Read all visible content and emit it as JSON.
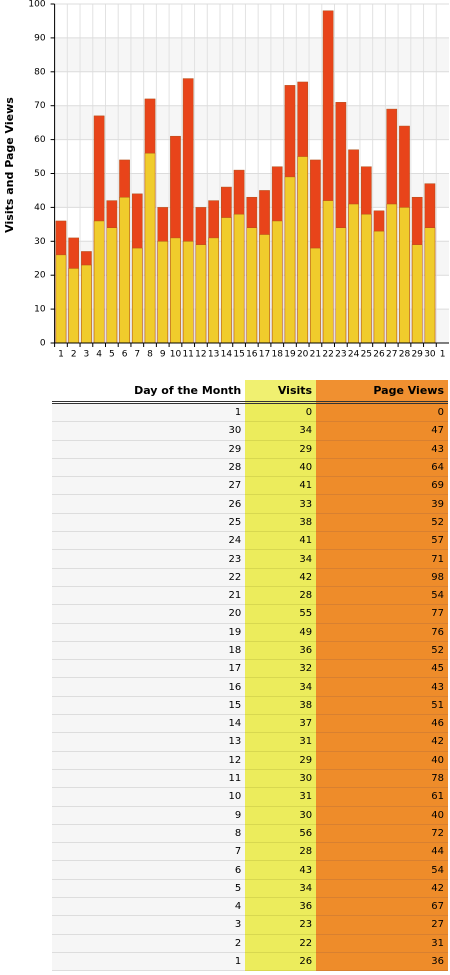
{
  "chart_data": {
    "type": "bar",
    "y_label": "Visits and Page Views",
    "categories": [
      1,
      2,
      3,
      4,
      5,
      6,
      7,
      8,
      9,
      10,
      11,
      12,
      13,
      14,
      15,
      16,
      17,
      18,
      19,
      20,
      21,
      22,
      23,
      24,
      25,
      26,
      27,
      28,
      29,
      30,
      1
    ],
    "series": [
      {
        "name": "Visits",
        "color": "#f0cc2c",
        "values": [
          26,
          22,
          23,
          36,
          34,
          43,
          28,
          56,
          30,
          31,
          30,
          29,
          31,
          37,
          38,
          34,
          32,
          36,
          49,
          55,
          28,
          42,
          34,
          41,
          38,
          33,
          41,
          40,
          29,
          34,
          0
        ]
      },
      {
        "name": "Page Views",
        "color": "#e8441a",
        "values": [
          36,
          31,
          27,
          67,
          42,
          54,
          44,
          72,
          40,
          61,
          78,
          40,
          42,
          46,
          51,
          43,
          45,
          52,
          76,
          77,
          54,
          98,
          71,
          57,
          52,
          39,
          69,
          64,
          43,
          47,
          0
        ]
      }
    ],
    "ylim": [
      0,
      100
    ],
    "yticks": [
      0,
      10,
      20,
      30,
      40,
      50,
      60,
      70,
      80,
      90,
      100
    ],
    "grid": true
  },
  "table": {
    "headers": [
      "Day of the Month",
      "Visits",
      "Page Views"
    ],
    "rows": [
      [
        1,
        0,
        0
      ],
      [
        30,
        34,
        47
      ],
      [
        29,
        29,
        43
      ],
      [
        28,
        40,
        64
      ],
      [
        27,
        41,
        69
      ],
      [
        26,
        33,
        39
      ],
      [
        25,
        38,
        52
      ],
      [
        24,
        41,
        57
      ],
      [
        23,
        34,
        71
      ],
      [
        22,
        42,
        98
      ],
      [
        21,
        28,
        54
      ],
      [
        20,
        55,
        77
      ],
      [
        19,
        49,
        76
      ],
      [
        18,
        36,
        52
      ],
      [
        17,
        32,
        45
      ],
      [
        16,
        34,
        43
      ],
      [
        15,
        38,
        51
      ],
      [
        14,
        37,
        46
      ],
      [
        13,
        31,
        42
      ],
      [
        12,
        29,
        40
      ],
      [
        11,
        30,
        78
      ],
      [
        10,
        31,
        61
      ],
      [
        9,
        30,
        40
      ],
      [
        8,
        56,
        72
      ],
      [
        7,
        28,
        44
      ],
      [
        6,
        43,
        54
      ],
      [
        5,
        34,
        42
      ],
      [
        4,
        36,
        67
      ],
      [
        3,
        23,
        27
      ],
      [
        2,
        22,
        31
      ],
      [
        1,
        26,
        36
      ]
    ]
  }
}
